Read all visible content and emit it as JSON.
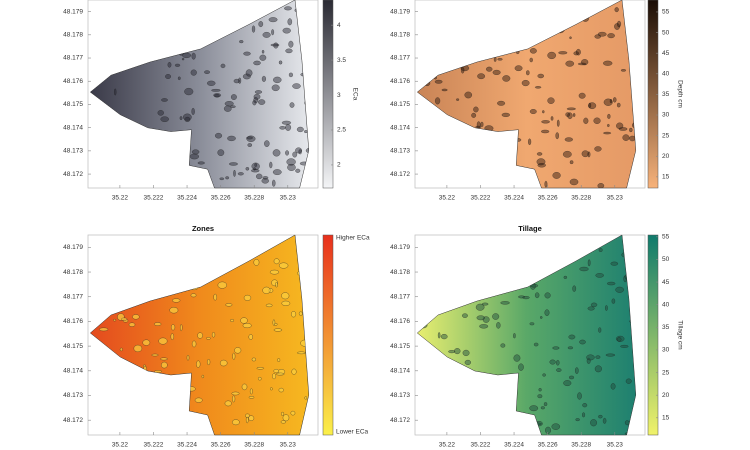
{
  "map": {
    "xlim": [
      35.2181,
      35.2318
    ],
    "ylim": [
      48.1714,
      48.1795
    ],
    "xticks": [
      35.22,
      35.222,
      35.224,
      35.226,
      35.228,
      35.23
    ],
    "yticks": [
      48.172,
      48.173,
      48.174,
      48.175,
      48.176,
      48.177,
      48.178,
      48.179
    ],
    "panels": [
      {
        "colorbar_label": "ECa",
        "clim": [
          1.67,
          4.36
        ],
        "cticks": [
          2,
          2.5,
          3,
          3.5,
          4
        ],
        "colormap": [
          "#2a2a33",
          "#f4f5f7"
        ]
      },
      {
        "colorbar_label": "Depth cm",
        "clim": [
          12.3,
          57.9
        ],
        "cticks": [
          15,
          20,
          25,
          30,
          35,
          40,
          45,
          50,
          55
        ],
        "colormap": [
          "#1a0d05",
          "#f7b27a"
        ]
      },
      {
        "title": "Zones",
        "colorbar_top": "Higher ECa",
        "colorbar_bottom": "Lower ECa",
        "colormap": [
          "#e8301c",
          "#fbf04a"
        ]
      },
      {
        "title": "Tillage",
        "colorbar_label": "Tillage cm",
        "clim": [
          11.2,
          55.4
        ],
        "cticks": [
          15,
          20,
          25,
          30,
          35,
          40,
          45,
          50,
          55
        ],
        "colormap": [
          "#0f7a6c",
          "#f0f26a"
        ]
      }
    ]
  }
}
